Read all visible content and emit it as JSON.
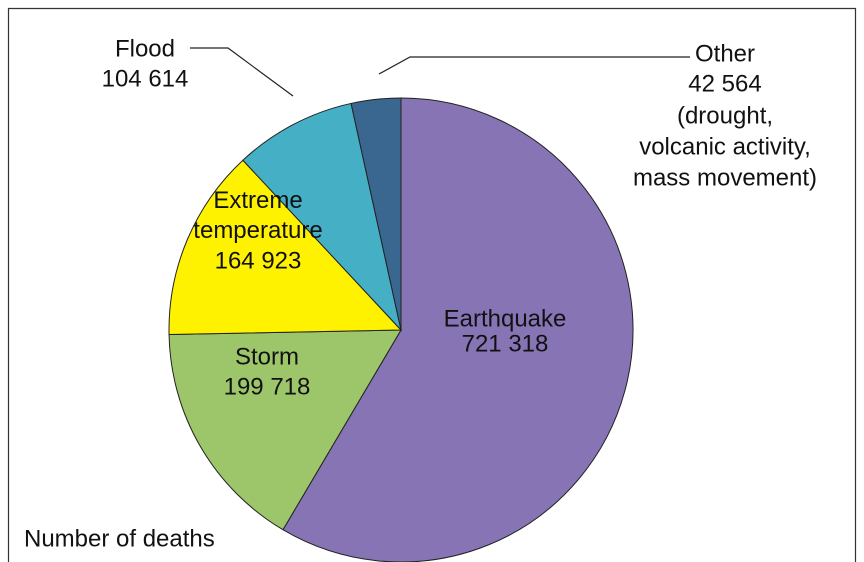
{
  "chart_data": {
    "type": "pie",
    "categories": [
      "Earthquake",
      "Storm",
      "Extreme temperature",
      "Flood",
      "Other"
    ],
    "values": [
      721318,
      199718,
      164923,
      104614,
      42564
    ],
    "value_labels": [
      "721 318",
      "199 718",
      "164 923",
      "104 614",
      "42 564"
    ],
    "colors": [
      "#8674b5",
      "#9dc56a",
      "#fff200",
      "#45afc6",
      "#3a6790"
    ],
    "annotation": [
      "(drought,",
      "volcanic activity,",
      "mass movement)"
    ],
    "caption": "Number of deaths"
  }
}
